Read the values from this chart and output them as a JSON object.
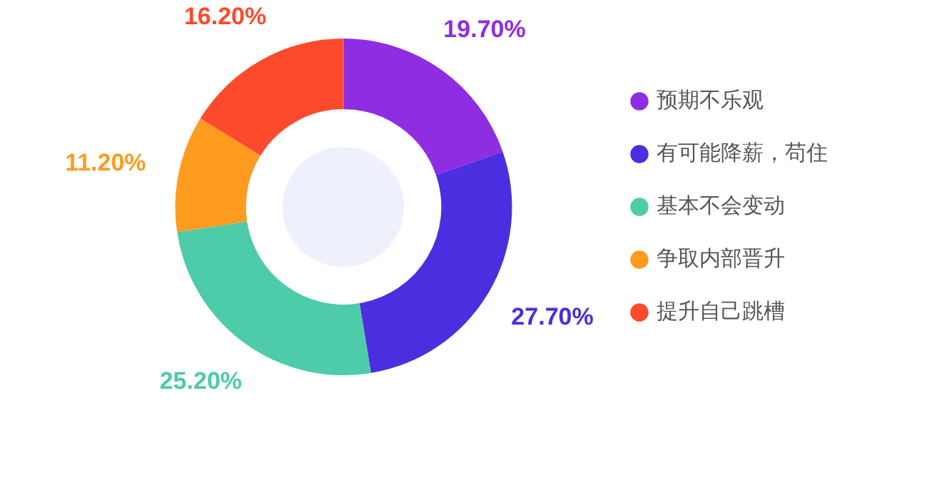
{
  "chart_data": {
    "type": "donut",
    "categories": [
      "预期不乐观",
      "有可能降薪，苟住",
      "基本不会变动",
      "争取内部晋升",
      "提升自己跳槽"
    ],
    "values": [
      19.7,
      27.7,
      25.2,
      11.2,
      16.2
    ],
    "colors": [
      "#8e2de2",
      "#4a2ee0",
      "#4ecba9",
      "#ff9b1f",
      "#fd4a2d"
    ],
    "value_labels": [
      "19.70%",
      "27.70%",
      "25.20%",
      "11.20%",
      "16.20%"
    ],
    "legend": "right"
  }
}
